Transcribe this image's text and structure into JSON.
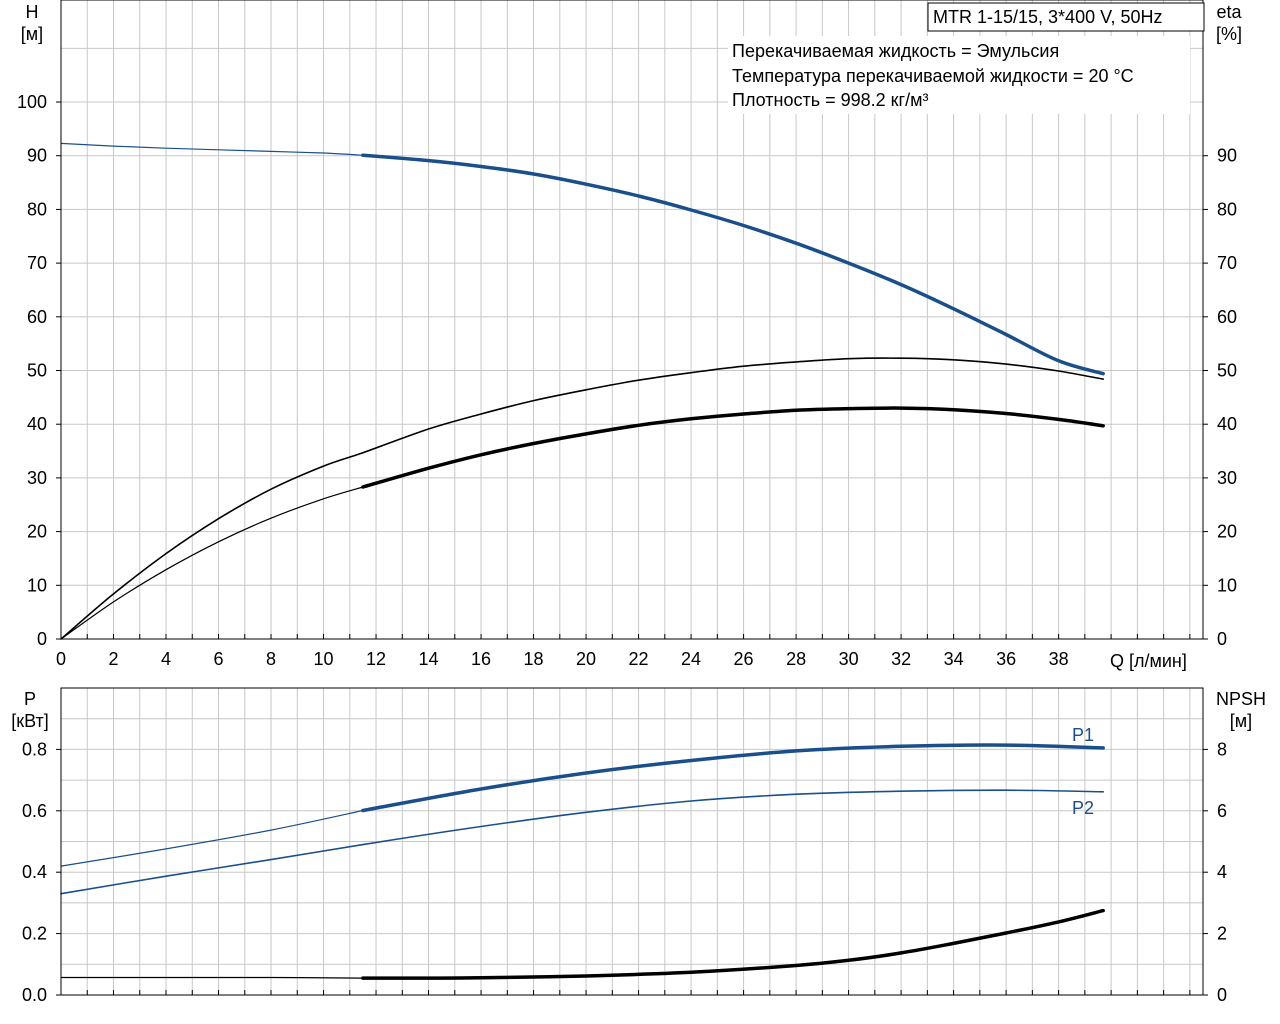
{
  "colors": {
    "blue": "#1a4f8b",
    "black": "#000000",
    "grid": "#c8c8c8",
    "frame": "#000000"
  },
  "title_box": {
    "model": "MTR 1-15/15, 3*400 V, 50Hz"
  },
  "info_lines": [
    "Перекачиваемая жидкость = Эмульсия",
    "Температура перекачиваемой жидкости = 20 °C",
    "Плотность = 998.2 кг/м³"
  ],
  "chart_data": [
    {
      "type": "line",
      "panel": "top",
      "grid": true,
      "x_axis": {
        "label": "Q [л/мин]",
        "range": [
          0,
          43.5
        ],
        "ticks": [
          "0",
          "2",
          "4",
          "6",
          "8",
          "10",
          "12",
          "14",
          "16",
          "18",
          "20",
          "22",
          "24",
          "26",
          "28",
          "30",
          "32",
          "34",
          "36",
          "38"
        ]
      },
      "y_left": {
        "label_line1": "H",
        "label_line2": "[м]",
        "range": [
          0,
          119
        ],
        "ticks": [
          "0",
          "10",
          "20",
          "30",
          "40",
          "50",
          "60",
          "70",
          "80",
          "90",
          "100"
        ]
      },
      "y_right": {
        "label_line1": "eta",
        "label_line2": "[%]",
        "range": [
          0,
          119
        ],
        "ticks": [
          "0",
          "10",
          "20",
          "30",
          "40",
          "50",
          "60",
          "70",
          "80",
          "90"
        ]
      },
      "series": [
        {
          "color": "blue",
          "axis": "left",
          "x": [
            0,
            2,
            4,
            6,
            8,
            10,
            11.5,
            14,
            16,
            18,
            20,
            22,
            24,
            26,
            28,
            30,
            32,
            34,
            36,
            38,
            39.7
          ],
          "y": [
            92.3,
            91.8,
            91.4,
            91.1,
            90.8,
            90.5,
            90.1,
            89.1,
            88.0,
            86.6,
            84.7,
            82.5,
            79.9,
            77.0,
            73.7,
            70.0,
            66.0,
            61.5,
            56.7,
            51.8,
            49.4
          ],
          "bold_from_x": 11.5
        },
        {
          "color": "black",
          "axis": "right",
          "x": [
            0,
            2,
            4,
            6,
            8,
            10,
            11.5,
            14,
            16,
            18,
            20,
            22,
            24,
            26,
            28,
            30,
            32,
            34,
            36,
            38,
            39.7
          ],
          "y": [
            0,
            8.4,
            15.9,
            22.4,
            27.9,
            32.2,
            34.7,
            39.1,
            41.9,
            44.4,
            46.4,
            48.2,
            49.6,
            50.8,
            51.6,
            52.2,
            52.3,
            52.0,
            51.2,
            49.9,
            48.4
          ],
          "bold_from_x": 99
        },
        {
          "color": "black",
          "axis": "right",
          "x": [
            0,
            2,
            4,
            6,
            8,
            10,
            11.5,
            14,
            16,
            18,
            20,
            22,
            24,
            26,
            28,
            30,
            32,
            34,
            36,
            38,
            39.7
          ],
          "y": [
            0,
            6.9,
            12.9,
            18.1,
            22.5,
            26.1,
            28.3,
            31.8,
            34.3,
            36.4,
            38.2,
            39.8,
            41.0,
            41.9,
            42.6,
            42.9,
            43.0,
            42.7,
            42.0,
            40.9,
            39.7
          ],
          "bold_from_x": 11.5
        }
      ]
    },
    {
      "type": "line",
      "panel": "bottom",
      "grid": true,
      "x_axis": {
        "label": "",
        "range": [
          0,
          43.5
        ],
        "ticks": []
      },
      "y_left": {
        "label_line1": "P",
        "label_line2": "[кВт]",
        "range": [
          0,
          1.0
        ],
        "ticks": [
          "0.0",
          "0.2",
          "0.4",
          "0.6",
          "0.8"
        ]
      },
      "y_right": {
        "label_line1": "NPSH",
        "label_line2": "[м]",
        "range": [
          0,
          10
        ],
        "ticks": [
          "0",
          "2",
          "4",
          "6",
          "8"
        ]
      },
      "series": [
        {
          "name": "P1",
          "color": "blue",
          "axis": "left",
          "x": [
            0,
            4,
            8,
            11.5,
            16,
            20,
            24,
            28,
            32,
            36,
            39.7
          ],
          "y": [
            0.42,
            0.476,
            0.537,
            0.601,
            0.671,
            0.723,
            0.764,
            0.795,
            0.81,
            0.814,
            0.805
          ],
          "bold_from_x": 11.5
        },
        {
          "name": "P2",
          "color": "blue",
          "axis": "left",
          "x": [
            0,
            4,
            8,
            11.5,
            16,
            20,
            24,
            28,
            32,
            36,
            39.7
          ],
          "y": [
            0.33,
            0.387,
            0.441,
            0.49,
            0.549,
            0.595,
            0.632,
            0.654,
            0.664,
            0.667,
            0.662
          ],
          "bold_from_x": 99
        },
        {
          "color": "black",
          "axis": "right",
          "x": [
            0,
            4,
            8,
            11.5,
            14,
            16,
            20,
            24,
            28,
            30,
            32,
            34,
            36,
            38,
            39.7
          ],
          "y": [
            0.57,
            0.57,
            0.57,
            0.55,
            0.55,
            0.56,
            0.62,
            0.74,
            0.96,
            1.13,
            1.37,
            1.68,
            2.02,
            2.38,
            2.75
          ],
          "bold_from_x": 11.5
        }
      ]
    }
  ]
}
